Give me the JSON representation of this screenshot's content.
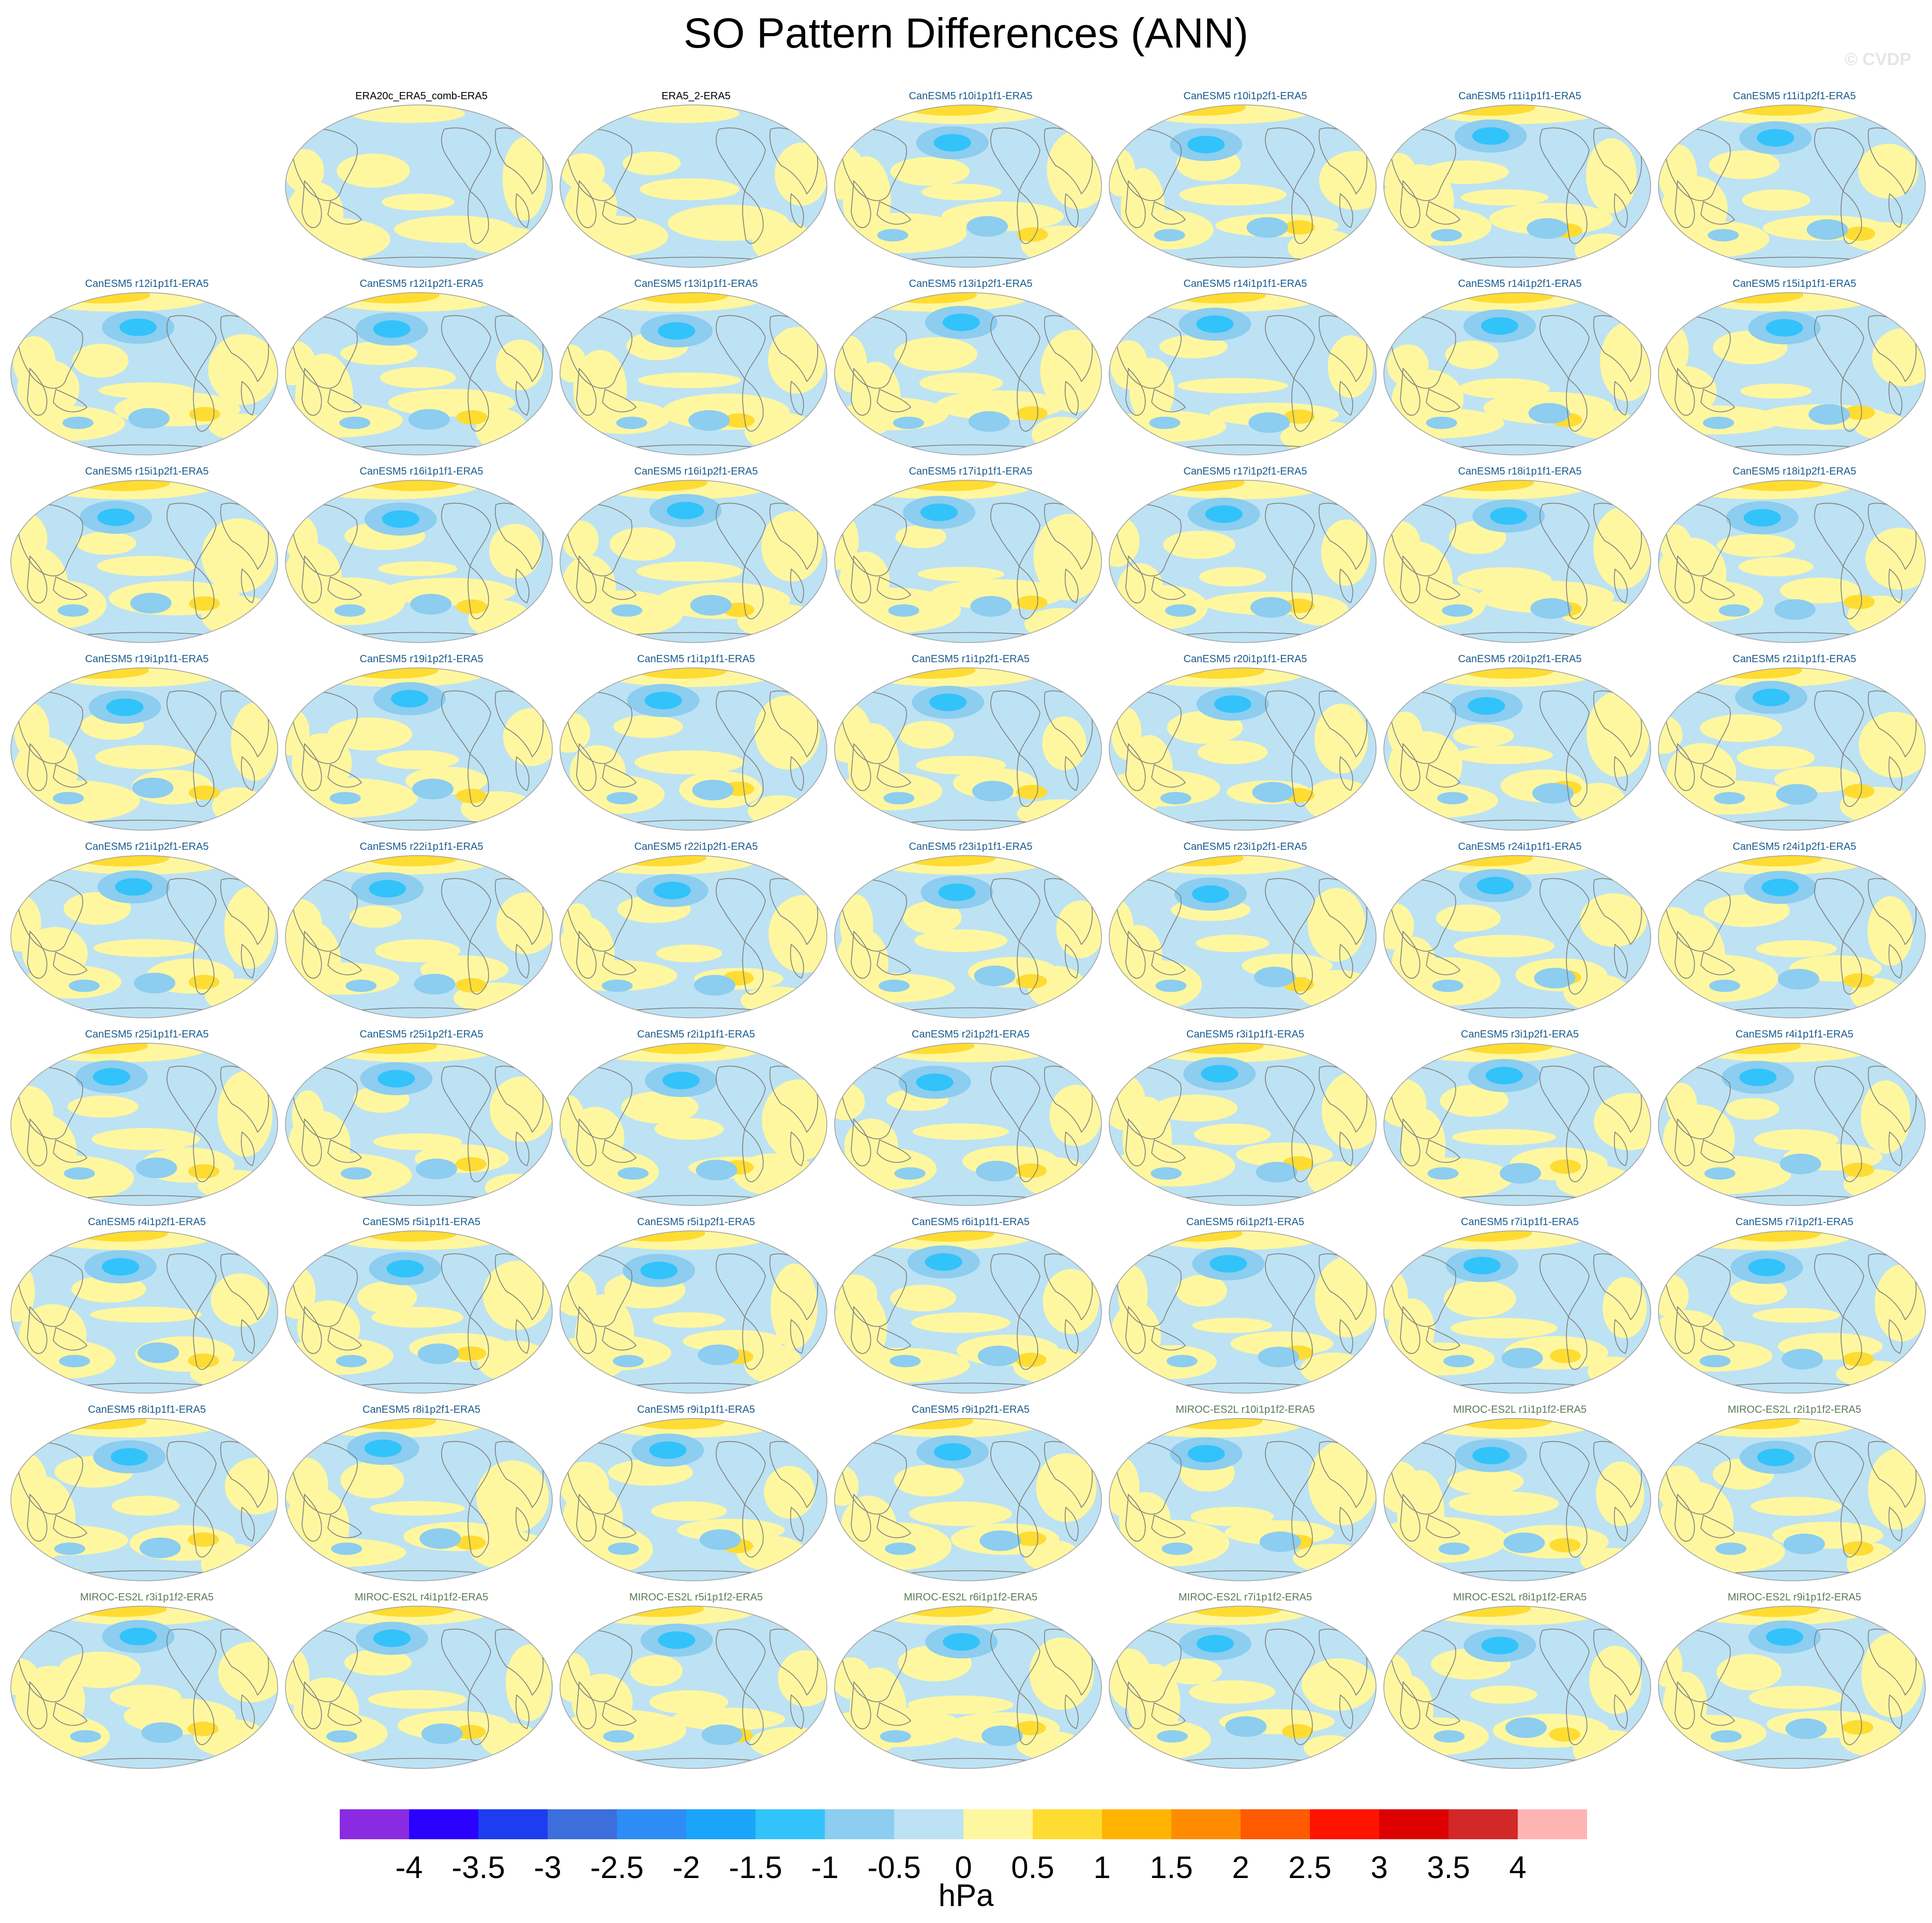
{
  "title": "SO Pattern Differences (ANN)",
  "watermark": "© CVDP",
  "units": "hPa",
  "colorbar": {
    "labels": [
      "-4",
      "-3.5",
      "-3",
      "-2.5",
      "-2",
      "-1.5",
      "-1",
      "-0.5",
      "0",
      "0.5",
      "1",
      "1.5",
      "2",
      "2.5",
      "3",
      "3.5",
      "4"
    ],
    "colors": [
      "#8a2be2",
      "#2a00ff",
      "#1e3cf0",
      "#3c6edc",
      "#2d8cf5",
      "#1aa5fa",
      "#32c3fa",
      "#8ccdf0",
      "#bde2f3",
      "#fff7a0",
      "#ffdc32",
      "#ffb400",
      "#ff8c00",
      "#ff5a00",
      "#ff1400",
      "#dc0000",
      "#d22828",
      "#ffb4b4"
    ]
  },
  "colors": {
    "obs_title": "#000000",
    "canesm_title": "#1a5a8c",
    "miroc_title": "#5a7a5a",
    "land_outline": "#808080",
    "map_border": "#a0a0a0",
    "ocean_neg": "#bde2f3",
    "pos": "#fff7a0",
    "pos_strong": "#ffdc32",
    "neg_mid": "#8ccdf0",
    "neg_strong": "#32c3fa"
  },
  "panels": [
    {
      "label": "ERA20c_ERA5_comb-ERA5",
      "group": "obs"
    },
    {
      "label": "ERA5_2-ERA5",
      "group": "obs"
    },
    {
      "label": "CanESM5 r10i1p1f1-ERA5",
      "group": "canesm"
    },
    {
      "label": "CanESM5 r10i1p2f1-ERA5",
      "group": "canesm"
    },
    {
      "label": "CanESM5 r11i1p1f1-ERA5",
      "group": "canesm"
    },
    {
      "label": "CanESM5 r11i1p2f1-ERA5",
      "group": "canesm"
    },
    {
      "label": "CanESM5 r12i1p1f1-ERA5",
      "group": "canesm"
    },
    {
      "label": "CanESM5 r12i1p2f1-ERA5",
      "group": "canesm"
    },
    {
      "label": "CanESM5 r13i1p1f1-ERA5",
      "group": "canesm"
    },
    {
      "label": "CanESM5 r13i1p2f1-ERA5",
      "group": "canesm"
    },
    {
      "label": "CanESM5 r14i1p1f1-ERA5",
      "group": "canesm"
    },
    {
      "label": "CanESM5 r14i1p2f1-ERA5",
      "group": "canesm"
    },
    {
      "label": "CanESM5 r15i1p1f1-ERA5",
      "group": "canesm"
    },
    {
      "label": "CanESM5 r15i1p2f1-ERA5",
      "group": "canesm"
    },
    {
      "label": "CanESM5 r16i1p1f1-ERA5",
      "group": "canesm"
    },
    {
      "label": "CanESM5 r16i1p2f1-ERA5",
      "group": "canesm"
    },
    {
      "label": "CanESM5 r17i1p1f1-ERA5",
      "group": "canesm"
    },
    {
      "label": "CanESM5 r17i1p2f1-ERA5",
      "group": "canesm"
    },
    {
      "label": "CanESM5 r18i1p1f1-ERA5",
      "group": "canesm"
    },
    {
      "label": "CanESM5 r18i1p2f1-ERA5",
      "group": "canesm"
    },
    {
      "label": "CanESM5 r19i1p1f1-ERA5",
      "group": "canesm"
    },
    {
      "label": "CanESM5 r19i1p2f1-ERA5",
      "group": "canesm"
    },
    {
      "label": "CanESM5 r1i1p1f1-ERA5",
      "group": "canesm"
    },
    {
      "label": "CanESM5 r1i1p2f1-ERA5",
      "group": "canesm"
    },
    {
      "label": "CanESM5 r20i1p1f1-ERA5",
      "group": "canesm"
    },
    {
      "label": "CanESM5 r20i1p2f1-ERA5",
      "group": "canesm"
    },
    {
      "label": "CanESM5 r21i1p1f1-ERA5",
      "group": "canesm"
    },
    {
      "label": "CanESM5 r21i1p2f1-ERA5",
      "group": "canesm"
    },
    {
      "label": "CanESM5 r22i1p1f1-ERA5",
      "group": "canesm"
    },
    {
      "label": "CanESM5 r22i1p2f1-ERA5",
      "group": "canesm"
    },
    {
      "label": "CanESM5 r23i1p1f1-ERA5",
      "group": "canesm"
    },
    {
      "label": "CanESM5 r23i1p2f1-ERA5",
      "group": "canesm"
    },
    {
      "label": "CanESM5 r24i1p1f1-ERA5",
      "group": "canesm"
    },
    {
      "label": "CanESM5 r24i1p2f1-ERA5",
      "group": "canesm"
    },
    {
      "label": "CanESM5 r25i1p1f1-ERA5",
      "group": "canesm"
    },
    {
      "label": "CanESM5 r25i1p2f1-ERA5",
      "group": "canesm"
    },
    {
      "label": "CanESM5 r2i1p1f1-ERA5",
      "group": "canesm"
    },
    {
      "label": "CanESM5 r2i1p2f1-ERA5",
      "group": "canesm"
    },
    {
      "label": "CanESM5 r3i1p1f1-ERA5",
      "group": "canesm"
    },
    {
      "label": "CanESM5 r3i1p2f1-ERA5",
      "group": "canesm"
    },
    {
      "label": "CanESM5 r4i1p1f1-ERA5",
      "group": "canesm"
    },
    {
      "label": "CanESM5 r4i1p2f1-ERA5",
      "group": "canesm"
    },
    {
      "label": "CanESM5 r5i1p1f1-ERA5",
      "group": "canesm"
    },
    {
      "label": "CanESM5 r5i1p2f1-ERA5",
      "group": "canesm"
    },
    {
      "label": "CanESM5 r6i1p1f1-ERA5",
      "group": "canesm"
    },
    {
      "label": "CanESM5 r6i1p2f1-ERA5",
      "group": "canesm"
    },
    {
      "label": "CanESM5 r7i1p1f1-ERA5",
      "group": "canesm"
    },
    {
      "label": "CanESM5 r7i1p2f1-ERA5",
      "group": "canesm"
    },
    {
      "label": "CanESM5 r8i1p1f1-ERA5",
      "group": "canesm"
    },
    {
      "label": "CanESM5 r8i1p2f1-ERA5",
      "group": "canesm"
    },
    {
      "label": "CanESM5 r9i1p1f1-ERA5",
      "group": "canesm"
    },
    {
      "label": "CanESM5 r9i1p2f1-ERA5",
      "group": "canesm"
    },
    {
      "label": "MIROC-ES2L r10i1p1f2-ERA5",
      "group": "miroc"
    },
    {
      "label": "MIROC-ES2L r1i1p1f2-ERA5",
      "group": "miroc"
    },
    {
      "label": "MIROC-ES2L r2i1p1f2-ERA5",
      "group": "miroc"
    },
    {
      "label": "MIROC-ES2L r3i1p1f2-ERA5",
      "group": "miroc"
    },
    {
      "label": "MIROC-ES2L r4i1p1f2-ERA5",
      "group": "miroc"
    },
    {
      "label": "MIROC-ES2L r5i1p1f2-ERA5",
      "group": "miroc"
    },
    {
      "label": "MIROC-ES2L r6i1p1f2-ERA5",
      "group": "miroc"
    },
    {
      "label": "MIROC-ES2L r7i1p1f2-ERA5",
      "group": "miroc"
    },
    {
      "label": "MIROC-ES2L r8i1p1f2-ERA5",
      "group": "miroc"
    },
    {
      "label": "MIROC-ES2L r9i1p1f2-ERA5",
      "group": "miroc"
    }
  ]
}
